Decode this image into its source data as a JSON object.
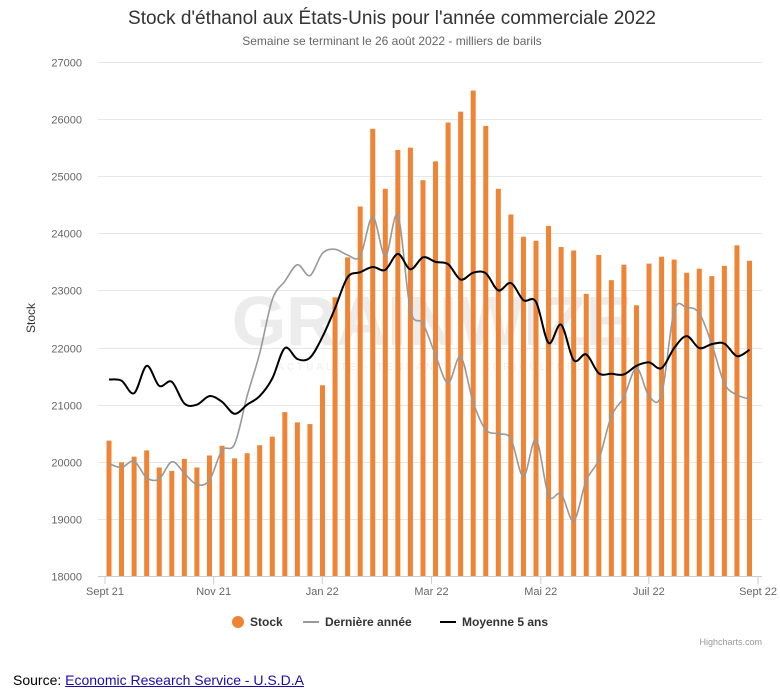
{
  "chart_data": {
    "type": "bar",
    "title": "Stock d'éthanol aux États-Unis pour l'année commerciale 2022",
    "subtitle": "Semaine se terminant le 26 août 2022 - milliers de barils",
    "ylabel": "Stock",
    "ylim": [
      18000,
      27000
    ],
    "yticks": [
      18000,
      19000,
      20000,
      21000,
      22000,
      23000,
      24000,
      25000,
      26000,
      27000
    ],
    "xticks": [
      "Sept 21",
      "Nov 21",
      "Jan 22",
      "Mar 22",
      "Mai 22",
      "Juil 22",
      "Sept 22"
    ],
    "grid": true,
    "legend_position": "bottom-center",
    "series": [
      {
        "name": "Stock",
        "type": "bar",
        "color": "#ee8434",
        "values": [
          20370,
          19990,
          20090,
          20200,
          19900,
          19840,
          20050,
          19900,
          20110,
          20280,
          20060,
          20150,
          20290,
          20440,
          20870,
          20690,
          20660,
          21340,
          22880,
          23580,
          24470,
          25830,
          24780,
          25460,
          25500,
          24930,
          25260,
          25940,
          26130,
          26500,
          25880,
          24780,
          24330,
          23940,
          23870,
          24130,
          23760,
          23700,
          22940,
          23620,
          23180,
          23450,
          22740,
          23470,
          23590,
          23540,
          23310,
          23380,
          23250,
          23430,
          23790,
          23520
        ]
      },
      {
        "name": "Dernière année",
        "type": "line",
        "color": "#999999",
        "values": [
          19970,
          19900,
          20010,
          19720,
          19700,
          20000,
          19800,
          19600,
          19680,
          20200,
          20310,
          21150,
          21900,
          22840,
          23160,
          23450,
          23260,
          23650,
          23720,
          23620,
          23600,
          24290,
          23600,
          24310,
          22660,
          22420,
          21870,
          21380,
          21840,
          21040,
          20560,
          20490,
          20400,
          19740,
          20390,
          19410,
          19440,
          18970,
          19670,
          20040,
          20800,
          21130,
          21640,
          21150,
          21180,
          22640,
          22700,
          22600,
          22060,
          21370,
          21170,
          21100
        ]
      },
      {
        "name": "Moyenne 5 ans",
        "type": "line",
        "color": "#000000",
        "values": [
          21440,
          21420,
          21200,
          21680,
          21330,
          21400,
          21020,
          21000,
          21150,
          21050,
          20840,
          21000,
          21150,
          21460,
          21990,
          21800,
          21820,
          22190,
          22690,
          23230,
          23320,
          23410,
          23360,
          23640,
          23370,
          23580,
          23500,
          23460,
          23190,
          23310,
          23300,
          23000,
          23130,
          22830,
          22800,
          22080,
          22400,
          21780,
          21880,
          21550,
          21540,
          21530,
          21680,
          21740,
          21640,
          21990,
          22200,
          21990,
          22060,
          22070,
          21850,
          21960
        ]
      }
    ],
    "credits": "Highcharts.com",
    "watermark": "GRAINWIZE",
    "watermark_sub": "ACTUALITÉ · TENDANCES · AGRICULTURE"
  },
  "source": {
    "prefix": "Source: ",
    "link_text": "Economic Research Service - U.S.D.A"
  }
}
